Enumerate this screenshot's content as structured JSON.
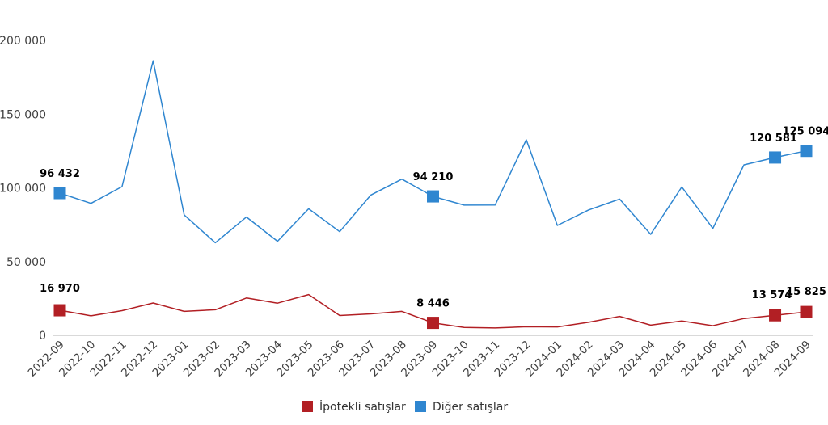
{
  "chart_data": {
    "type": "line",
    "title": "",
    "xlabel": "",
    "ylabel": "",
    "ylim": [
      0,
      200000
    ],
    "yticks": [
      "0",
      "50 000",
      "100 000",
      "150 000",
      "200 000"
    ],
    "yticks_values": [
      0,
      50000,
      100000,
      150000,
      200000
    ],
    "grid": false,
    "legend_position": "bottom",
    "categories": [
      "2022-09",
      "2022-10",
      "2022-11",
      "2022-12",
      "2023-01",
      "2023-02",
      "2023-03",
      "2023-04",
      "2023-05",
      "2023-06",
      "2023-07",
      "2023-08",
      "2023-09",
      "2023-10",
      "2023-11",
      "2023-12",
      "2024-01",
      "2024-02",
      "2024-03",
      "2024-04",
      "2024-05",
      "2024-06",
      "2024-07",
      "2024-08",
      "2024-09"
    ],
    "series": [
      {
        "name": "İpotekli satışlar",
        "color": "#b21f24",
        "values": [
          16970,
          13200,
          16700,
          21900,
          16200,
          17300,
          25300,
          21800,
          27600,
          13400,
          14500,
          16200,
          8446,
          5300,
          5000,
          5800,
          5700,
          8800,
          12800,
          6900,
          9700,
          6500,
          11400,
          13574,
          15825
        ],
        "marked": [
          0,
          12,
          23,
          24
        ],
        "labels": {
          "0": "16 970",
          "12": "8 446",
          "23": "13 574",
          "24": "15 825"
        }
      },
      {
        "name": "Diğer satışlar",
        "color": "#2f86d0",
        "values": [
          96432,
          89500,
          100800,
          186200,
          81600,
          62800,
          80200,
          63800,
          85800,
          70300,
          95100,
          105900,
          94210,
          88300,
          88400,
          132600,
          74500,
          85000,
          92400,
          68500,
          100600,
          72500,
          115600,
          120581,
          125094
        ],
        "marked": [
          0,
          12,
          23,
          24
        ],
        "labels": {
          "0": "96 432",
          "12": "94 210",
          "23": "120 581",
          "24": "125 094"
        }
      }
    ]
  }
}
